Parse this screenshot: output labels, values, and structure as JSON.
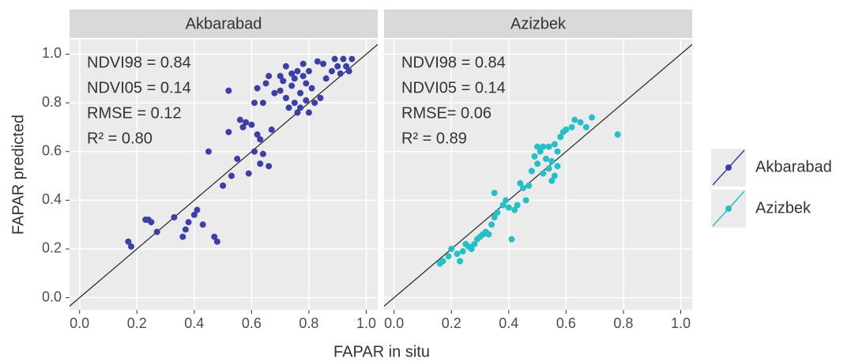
{
  "x_label": "FAPAR in situ",
  "y_label": "FAPAR predicted",
  "chart_data": [
    {
      "type": "scatter",
      "title": "Akbarabad",
      "annotations": [
        "NDVI98 = 0.84",
        "NDVI05 = 0.14",
        "RMSE = 0.12",
        "R² = 0.80"
      ],
      "xlim": [
        -0.035,
        1.04
      ],
      "ylim": [
        -0.05,
        1.06
      ],
      "xticks": [
        {
          "value": 0,
          "label": "0.0"
        },
        0.2,
        0.4,
        0.6,
        0.8,
        {
          "value": 1,
          "label": "1.0"
        }
      ],
      "yticks": [
        {
          "value": 0,
          "label": "0.0"
        },
        0.2,
        0.4,
        0.6,
        0.8,
        {
          "value": 1,
          "label": "1.0"
        }
      ],
      "grid": true,
      "identity_line": true,
      "series": [
        {
          "name": "Akbarabad",
          "color": "#3b3fa6",
          "x": [
            0.17,
            0.18,
            0.23,
            0.24,
            0.25,
            0.27,
            0.33,
            0.36,
            0.37,
            0.38,
            0.4,
            0.41,
            0.43,
            0.45,
            0.47,
            0.48,
            0.5,
            0.52,
            0.52,
            0.53,
            0.55,
            0.56,
            0.57,
            0.58,
            0.59,
            0.6,
            0.61,
            0.61,
            0.62,
            0.62,
            0.63,
            0.63,
            0.64,
            0.64,
            0.65,
            0.66,
            0.66,
            0.67,
            0.68,
            0.7,
            0.7,
            0.71,
            0.72,
            0.72,
            0.73,
            0.74,
            0.74,
            0.75,
            0.75,
            0.76,
            0.76,
            0.77,
            0.77,
            0.78,
            0.78,
            0.79,
            0.79,
            0.8,
            0.8,
            0.81,
            0.82,
            0.83,
            0.84,
            0.85,
            0.86,
            0.88,
            0.89,
            0.9,
            0.91,
            0.92,
            0.93,
            0.94,
            0.95
          ],
          "values": [
            0.23,
            0.21,
            0.32,
            0.32,
            0.31,
            0.27,
            0.33,
            0.25,
            0.28,
            0.31,
            0.34,
            0.36,
            0.3,
            0.6,
            0.25,
            0.23,
            0.46,
            0.85,
            0.68,
            0.5,
            0.57,
            0.73,
            0.7,
            0.72,
            0.51,
            0.71,
            0.8,
            0.6,
            0.67,
            0.86,
            0.65,
            0.55,
            0.8,
            0.59,
            0.88,
            0.91,
            0.54,
            0.69,
            0.84,
            0.85,
            0.91,
            0.89,
            0.82,
            0.95,
            0.78,
            0.87,
            0.92,
            0.8,
            0.9,
            0.76,
            0.93,
            0.84,
            0.78,
            0.91,
            0.96,
            0.81,
            0.88,
            0.76,
            0.93,
            0.86,
            0.8,
            0.97,
            0.82,
            0.96,
            0.9,
            0.93,
            0.98,
            0.95,
            0.92,
            0.98,
            0.95,
            0.93,
            0.98
          ]
        }
      ]
    },
    {
      "type": "scatter",
      "title": "Azizbek",
      "annotations": [
        "NDVI98 = 0.84",
        "NDVI05 = 0.14",
        "RMSE= 0.06",
        "R² = 0.89"
      ],
      "xlim": [
        -0.035,
        1.04
      ],
      "ylim": [
        -0.05,
        1.06
      ],
      "xticks": [
        {
          "value": 0,
          "label": "0.0"
        },
        0.2,
        0.4,
        0.6,
        0.8,
        {
          "value": 1,
          "label": "1.0"
        }
      ],
      "yticks": [
        {
          "value": 0,
          "label": "0.0"
        },
        0.2,
        0.4,
        0.6,
        0.8,
        {
          "value": 1,
          "label": "1.0"
        }
      ],
      "grid": true,
      "identity_line": true,
      "series": [
        {
          "name": "Azizbek",
          "color": "#25bfc7",
          "x": [
            0.16,
            0.17,
            0.19,
            0.2,
            0.22,
            0.23,
            0.24,
            0.25,
            0.26,
            0.27,
            0.28,
            0.29,
            0.3,
            0.31,
            0.32,
            0.33,
            0.34,
            0.35,
            0.35,
            0.36,
            0.38,
            0.39,
            0.4,
            0.41,
            0.42,
            0.43,
            0.44,
            0.45,
            0.46,
            0.47,
            0.48,
            0.49,
            0.5,
            0.5,
            0.51,
            0.52,
            0.52,
            0.53,
            0.54,
            0.54,
            0.55,
            0.55,
            0.56,
            0.56,
            0.57,
            0.57,
            0.58,
            0.59,
            0.6,
            0.62,
            0.63,
            0.65,
            0.67,
            0.69,
            0.78
          ],
          "values": [
            0.14,
            0.15,
            0.17,
            0.2,
            0.18,
            0.15,
            0.19,
            0.22,
            0.21,
            0.2,
            0.22,
            0.24,
            0.25,
            0.26,
            0.27,
            0.26,
            0.3,
            0.33,
            0.43,
            0.35,
            0.38,
            0.4,
            0.37,
            0.24,
            0.36,
            0.38,
            0.47,
            0.45,
            0.4,
            0.46,
            0.52,
            0.58,
            0.62,
            0.55,
            0.6,
            0.62,
            0.51,
            0.57,
            0.53,
            0.62,
            0.56,
            0.48,
            0.63,
            0.5,
            0.6,
            0.54,
            0.66,
            0.68,
            0.69,
            0.7,
            0.73,
            0.72,
            0.7,
            0.74,
            0.67
          ]
        }
      ]
    }
  ]
}
